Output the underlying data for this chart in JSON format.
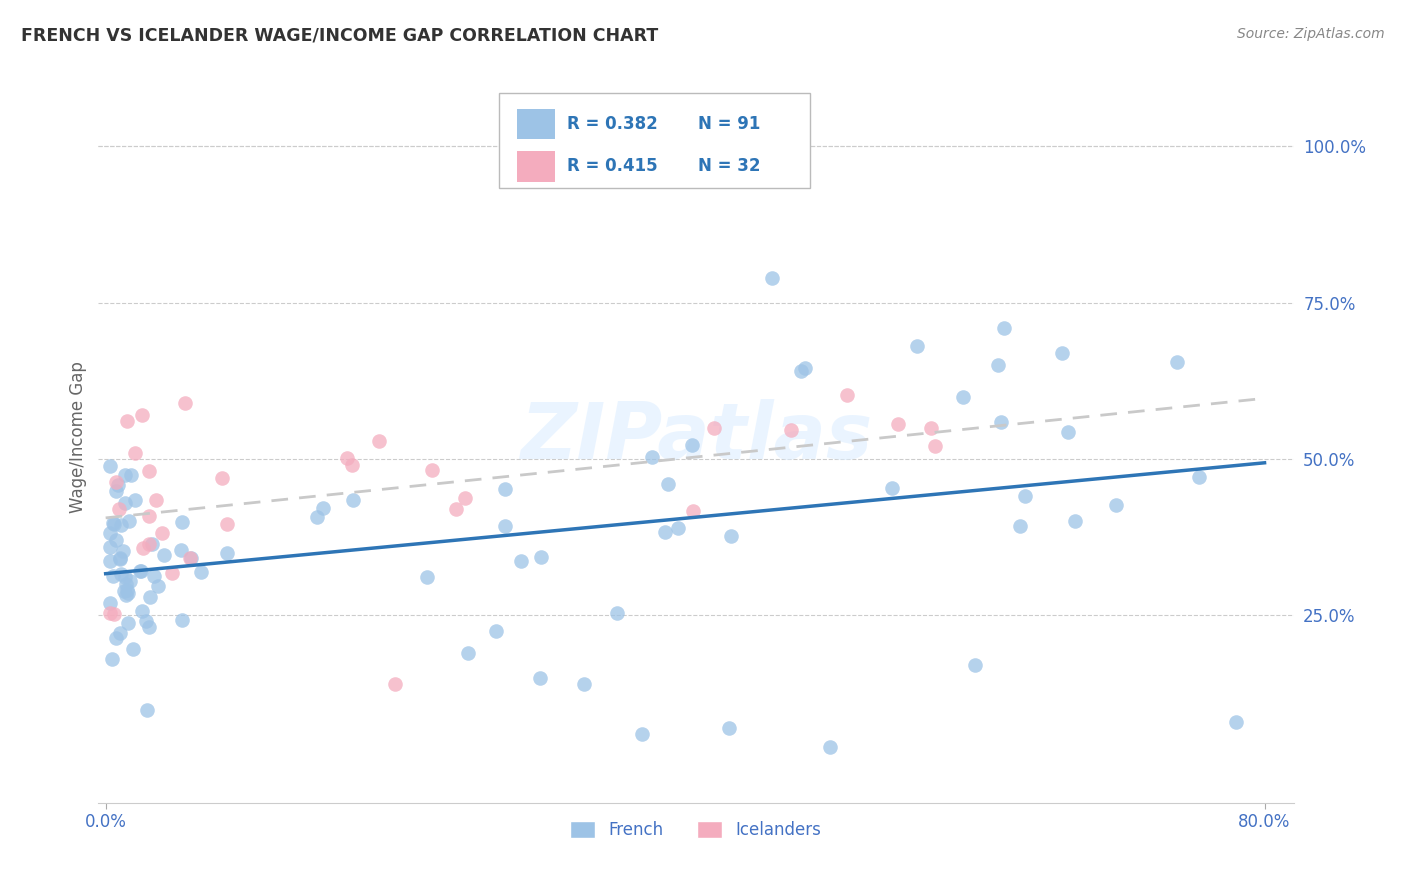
{
  "title": "FRENCH VS ICELANDER WAGE/INCOME GAP CORRELATION CHART",
  "source": "Source: ZipAtlas.com",
  "ylabel": "Wage/Income Gap",
  "ytick_labels": [
    "100.0%",
    "75.0%",
    "50.0%",
    "25.0%"
  ],
  "ytick_positions": [
    1.0,
    0.75,
    0.5,
    0.25
  ],
  "xlim": [
    0.0,
    0.8
  ],
  "ylim": [
    -0.05,
    1.1
  ],
  "legend_R_french": "R = 0.382",
  "legend_N_french": "N = 91",
  "legend_R_icelander": "R = 0.415",
  "legend_N_icelander": "N = 32",
  "french_color": "#9DC3E6",
  "icelander_color": "#F4ACBE",
  "french_line_color": "#2E75B6",
  "icelander_line_color": "#C9C9C9",
  "legend_text_color": "#2E75B6",
  "axis_label_color": "#4472C4",
  "watermark": "ZIPatlas",
  "background_color": "#FFFFFF",
  "grid_color": "#CCCCCC",
  "bottom_legend_color": "#4472C4"
}
